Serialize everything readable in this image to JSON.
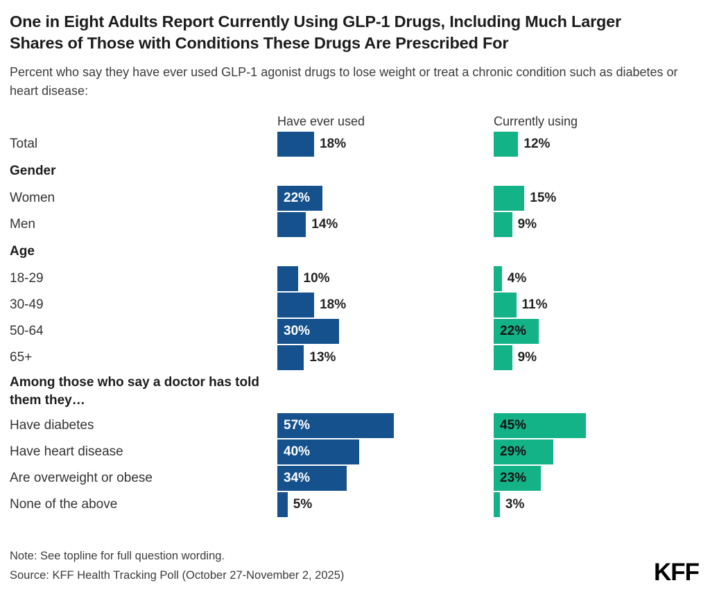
{
  "title": "One in Eight Adults Report Currently Using GLP-1 Drugs, Including Much Larger Shares of Those with Conditions These Drugs Are Prescribed For",
  "subtitle": "Percent who say they have ever used GLP-1 agonist drugs to lose weight or treat a chronic condition such as diabetes or heart disease:",
  "columns": [
    {
      "label": "Have ever used",
      "color": "#14518d",
      "inside_label_color": "#ffffff"
    },
    {
      "label": "Currently using",
      "color": "#13b287",
      "inside_label_color": "#111111"
    }
  ],
  "rows": [
    {
      "kind": "data",
      "label": "Total",
      "ever": 18,
      "current": 12
    },
    {
      "kind": "section",
      "label": "Gender"
    },
    {
      "kind": "data",
      "label": "Women",
      "ever": 22,
      "current": 15
    },
    {
      "kind": "data",
      "label": "Men",
      "ever": 14,
      "current": 9
    },
    {
      "kind": "section",
      "label": "Age"
    },
    {
      "kind": "data",
      "label": "18-29",
      "ever": 10,
      "current": 4
    },
    {
      "kind": "data",
      "label": "30-49",
      "ever": 18,
      "current": 11
    },
    {
      "kind": "data",
      "label": "50-64",
      "ever": 30,
      "current": 22
    },
    {
      "kind": "data",
      "label": "65+",
      "ever": 13,
      "current": 9
    },
    {
      "kind": "section",
      "label": "Among those who say a doctor has told them they…",
      "tall": true
    },
    {
      "kind": "data",
      "label": "Have diabetes",
      "ever": 57,
      "current": 45
    },
    {
      "kind": "data",
      "label": "Have heart disease",
      "ever": 40,
      "current": 29
    },
    {
      "kind": "data",
      "label": "Are overweight or obese",
      "ever": 34,
      "current": 23
    },
    {
      "kind": "data",
      "label": "None of the above",
      "ever": 5,
      "current": 3
    }
  ],
  "note": "Note: See topline for full question wording.",
  "source": "Source: KFF Health Tracking Poll (October 27-November 2, 2025)",
  "logo": "KFF",
  "chart_data": {
    "type": "bar",
    "orientation": "horizontal",
    "title": "One in Eight Adults Report Currently Using GLP-1 Drugs, Including Much Larger Shares of Those with Conditions These Drugs Are Prescribed For",
    "subtitle": "Percent who say they have ever used GLP-1 agonist drugs to lose weight or treat a chronic condition such as diabetes or heart disease:",
    "categories": [
      "Total",
      "Women",
      "Men",
      "18-29",
      "30-49",
      "50-64",
      "65+",
      "Have diabetes",
      "Have heart disease",
      "Are overweight or obese",
      "None of the above"
    ],
    "category_groups": [
      {
        "header": null,
        "categories": [
          "Total"
        ]
      },
      {
        "header": "Gender",
        "categories": [
          "Women",
          "Men"
        ]
      },
      {
        "header": "Age",
        "categories": [
          "18-29",
          "30-49",
          "50-64",
          "65+"
        ]
      },
      {
        "header": "Among those who say a doctor has told them they…",
        "categories": [
          "Have diabetes",
          "Have heart disease",
          "Are overweight or obese",
          "None of the above"
        ]
      }
    ],
    "series": [
      {
        "name": "Have ever used",
        "color": "#14518d",
        "values": [
          18,
          22,
          14,
          10,
          18,
          30,
          13,
          57,
          40,
          34,
          5
        ]
      },
      {
        "name": "Currently using",
        "color": "#13b287",
        "values": [
          12,
          15,
          9,
          4,
          11,
          22,
          9,
          45,
          29,
          23,
          3
        ]
      }
    ],
    "unit": "%",
    "xlim": [
      0,
      100
    ],
    "grid": false,
    "legend_position": "column-headers",
    "data_labels": true,
    "note": "Note: See topline for full question wording.",
    "source": "Source: KFF Health Tracking Poll (October 27-November 2, 2025)"
  }
}
